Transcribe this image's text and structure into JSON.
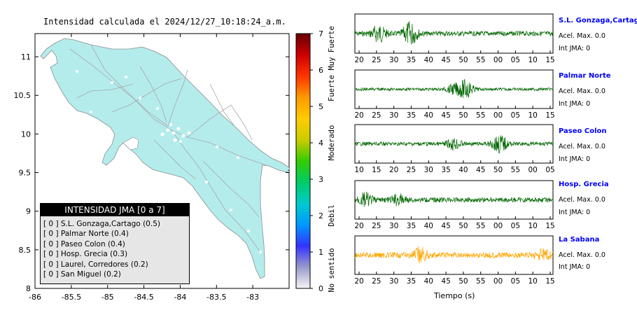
{
  "map": {
    "title": "Intensidad calculada el 2024/12/27_10:18:24_a.m.",
    "x_ticks": [
      "-86",
      "-85.5",
      "-85",
      "-84.5",
      "-84",
      "-83.5",
      "-83"
    ],
    "y_ticks": [
      "11",
      "10.5",
      "10",
      "9.5",
      "9",
      "8.5",
      "8"
    ],
    "land_color": "#b4ecec",
    "road_color": "#a8a8a8"
  },
  "colorbar": {
    "ticks": [
      "0",
      "1",
      "2",
      "3",
      "4",
      "5",
      "6",
      "7"
    ],
    "labels": [
      "No sentido",
      "Debil",
      "Moderado",
      "Fuerte",
      "Muy Fuerte"
    ],
    "colors": [
      "#f5f5f5",
      "#9999cc",
      "#3333ff",
      "#0099ff",
      "#00cccc",
      "#00cc66",
      "#33cc00",
      "#cccc00",
      "#ffcc00",
      "#ff9900",
      "#ff3300",
      "#cc0000",
      "#660000"
    ]
  },
  "legend": {
    "title": "INTENSIDAD JMA [0 a 7]",
    "items": [
      "[ 0 ] S.L. Gonzaga,Cartago (0.5)",
      "[ 0 ] Palmar Norte (0.4)",
      "[ 0 ] Paseo Colon (0.4)",
      "[ 0 ] Hosp. Grecia (0.3)",
      "[ 0 ] Laurel, Corredores (0.2)",
      "[ 0 ] San Miguel (0.2)"
    ]
  },
  "stations": [
    {
      "name": "S.L. Gonzaga,Cartago",
      "acc": "Acel. Max. 0.0",
      "int": "Int JMA: 0",
      "ticks": [
        "20",
        "25",
        "30",
        "35",
        "40",
        "45",
        "50",
        "55",
        "00",
        "05",
        "10",
        "15"
      ],
      "color": "#006600"
    },
    {
      "name": "Palmar Norte",
      "acc": "Acel. Max. 0.0",
      "int": "Int JMA: 0",
      "ticks": [
        "20",
        "25",
        "30",
        "35",
        "40",
        "45",
        "50",
        "55",
        "00",
        "05",
        "10",
        "15"
      ],
      "color": "#006600"
    },
    {
      "name": "Paseo Colon",
      "acc": "Acel. Max. 0.0",
      "int": "Int JMA: 0",
      "ticks": [
        "10",
        "15",
        "20",
        "25",
        "30",
        "35",
        "40",
        "45",
        "50",
        "55",
        "00",
        "05"
      ],
      "color": "#006600"
    },
    {
      "name": "Hosp. Grecia",
      "acc": "Acel. Max. 0.0",
      "int": "Int JMA: 0",
      "ticks": [
        "20",
        "25",
        "30",
        "35",
        "40",
        "45",
        "50",
        "55",
        "00",
        "05",
        "10",
        "15"
      ],
      "color": "#006600"
    },
    {
      "name": "La Sabana",
      "acc": "Acel. Max. 0.0",
      "int": "Int JMA: 0",
      "ticks": [
        "20",
        "25",
        "30",
        "35",
        "40",
        "45",
        "50",
        "55",
        "00",
        "05",
        "10",
        "15"
      ],
      "color": "#ffa500"
    }
  ],
  "xlabel": "Tiempo (s)",
  "chart_data": [
    {
      "type": "heatmap",
      "title": "Intensidad calculada el 2024/12/27_10:18:24_a.m.",
      "xlim": [
        -86,
        -82.5
      ],
      "ylim": [
        8,
        11.3
      ],
      "x_ticks": [
        -86,
        -85.5,
        -85,
        -84.5,
        -84,
        -83.5,
        -83
      ],
      "y_ticks": [
        8,
        8.5,
        9,
        9.5,
        10,
        10.5,
        11
      ],
      "colorbar_range": [
        0,
        7
      ]
    },
    {
      "type": "line",
      "series": [
        {
          "name": "S.L. Gonzaga,Cartago"
        },
        {
          "name": "Palmar Norte"
        },
        {
          "name": "Paseo Colon"
        },
        {
          "name": "Hosp. Grecia"
        },
        {
          "name": "La Sabana"
        }
      ],
      "xlabel": "Tiempo (s)"
    }
  ]
}
